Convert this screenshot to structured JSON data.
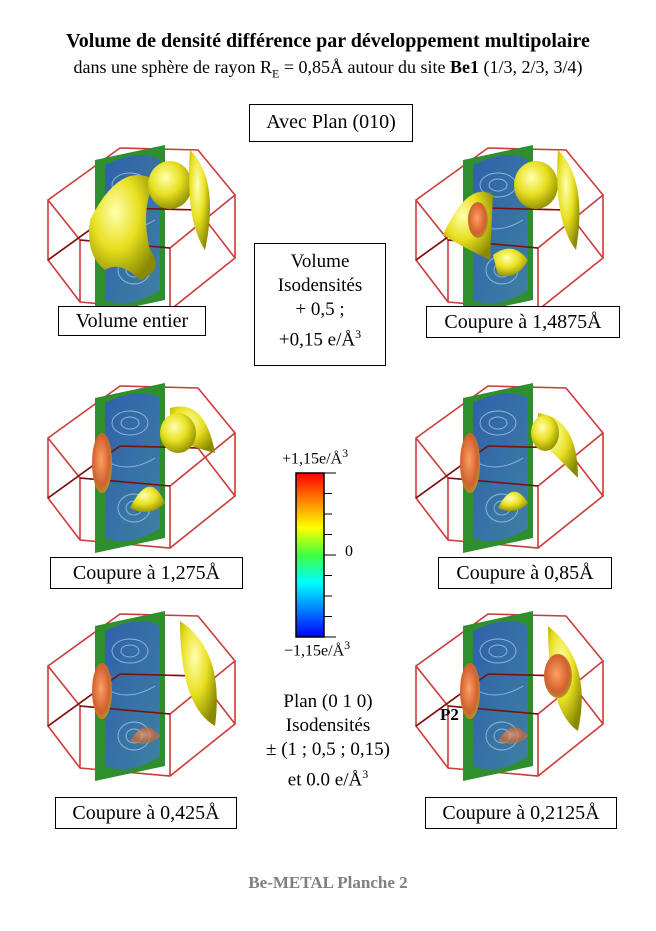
{
  "header": {
    "title": "Volume de densité différence par développement multipolaire",
    "subtitle_pre": "dans une sphère de rayon R",
    "subtitle_sub": "E",
    "subtitle_mid": " = 0,85Å autour du site ",
    "subtitle_site": "Be1",
    "subtitle_post": " (1/3, 2/3, 3/4)"
  },
  "plane_box": "Avec Plan (010)",
  "panels": [
    {
      "caption": "Volume entier"
    },
    {
      "caption": "Coupure à 1,4875Å"
    },
    {
      "caption": "Coupure à 1,275Å"
    },
    {
      "caption": "Coupure à 0,85Å"
    },
    {
      "caption": "Coupure à 0,425Å"
    },
    {
      "caption": "Coupure à 0,2125Å"
    }
  ],
  "volume_info": {
    "line1": "Volume",
    "line2": "Isodensités",
    "line3": "+ 0,5 ;",
    "line4": "+0,15 e/Å",
    "line4_sup": "3"
  },
  "colorbar": {
    "top_label": "+1,15e/Å",
    "top_sup": "3",
    "mid_label": "0",
    "bottom_label": "−1,15e/Å",
    "bottom_sup": "3",
    "colors": [
      "#ff0000",
      "#ff8000",
      "#ffff00",
      "#40ff40",
      "#00ffff",
      "#0080ff",
      "#0000ff"
    ]
  },
  "plane_info": {
    "line1": "Plan (0 1 0)",
    "line2": "Isodensités",
    "line3": "± (1 ; 0,5 ; 0,15)",
    "line4": "et 0.0 e/Å",
    "line4_sup": "3"
  },
  "p2_label": "P2",
  "footer": "Be-METAL Planche 2"
}
